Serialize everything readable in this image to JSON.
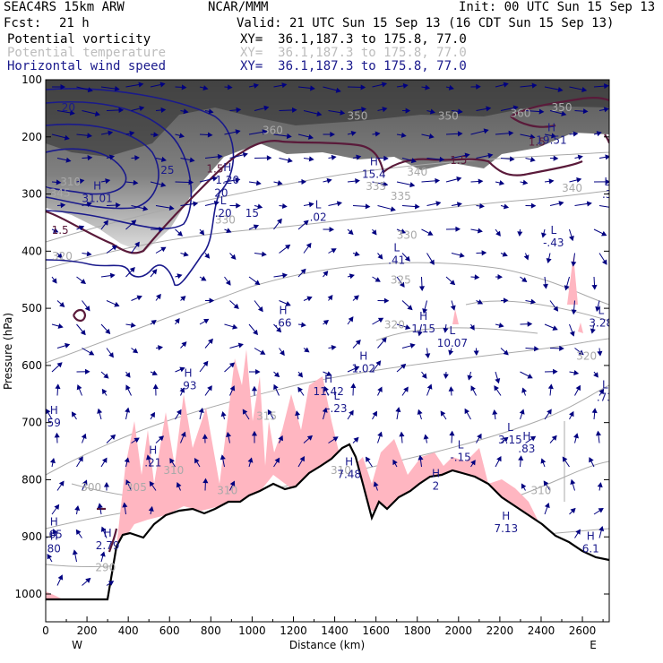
{
  "header": {
    "model": "SEAC4RS 15km ARW",
    "institution": "NCAR/MMM",
    "init": "Init: 00 UTC Sun 15 Sep 13",
    "fcst_label": "Fcst:",
    "fcst_value": "21 h",
    "valid": "Valid: 21 UTC Sun 15 Sep 13 (16 CDT Sun 15 Sep 13)",
    "fields": [
      {
        "name": "Potential vorticity",
        "color": "#000000",
        "xy": "XY=  36.1,187.3 to 175.8, 77.0"
      },
      {
        "name": "Potential temperature",
        "color": "#bdbdbd",
        "xy": "XY=  36.1,187.3 to 175.8, 77.0"
      },
      {
        "name": "Horizontal wind speed",
        "color": "#1a1a8c",
        "xy": "XY=  36.1,187.3 to 175.8, 77.0"
      }
    ]
  },
  "chart_data": {
    "type": "cross-section",
    "xlabel": "Distance (km)",
    "ylabel": "Pressure (hPa)",
    "xlim": [
      0,
      2730
    ],
    "ylim": [
      1000,
      100
    ],
    "x_ticks": [
      0,
      200,
      400,
      600,
      800,
      1000,
      1200,
      1400,
      1600,
      1800,
      2000,
      2200,
      2400,
      2600
    ],
    "y_ticks": [
      1000,
      900,
      800,
      700,
      600,
      500,
      400,
      300,
      200,
      100
    ],
    "endpoints": {
      "left": "W",
      "right": "E"
    },
    "colors": {
      "pv_contour": "#5a1a3a",
      "theta_contour": "#a9a9a9",
      "wind_contour": "#1a1a8c",
      "moisture_fill": "#ffb6c1",
      "wind_vectors": "#000080"
    },
    "theta_labels": [
      {
        "x": 120,
        "p": 285,
        "text": "310"
      },
      {
        "x": 70,
        "p": 305,
        "text": "345"
      },
      {
        "x": 1100,
        "p": 195,
        "text": "360"
      },
      {
        "x": 1510,
        "p": 170,
        "text": "350"
      },
      {
        "x": 1950,
        "p": 170,
        "text": "350"
      },
      {
        "x": 2300,
        "p": 165,
        "text": "360"
      },
      {
        "x": 2500,
        "p": 155,
        "text": "350"
      },
      {
        "x": 1800,
        "p": 268,
        "text": "340"
      },
      {
        "x": 2550,
        "p": 296,
        "text": "340"
      },
      {
        "x": 1600,
        "p": 293,
        "text": "335"
      },
      {
        "x": 1720,
        "p": 310,
        "text": "335"
      },
      {
        "x": 870,
        "p": 352,
        "text": "330"
      },
      {
        "x": 1750,
        "p": 378,
        "text": "330"
      },
      {
        "x": 80,
        "p": 415,
        "text": "320"
      },
      {
        "x": 1720,
        "p": 457,
        "text": "325"
      },
      {
        "x": 1690,
        "p": 535,
        "text": "320"
      },
      {
        "x": 2620,
        "p": 590,
        "text": "320"
      },
      {
        "x": 1070,
        "p": 695,
        "text": "315"
      },
      {
        "x": 880,
        "p": 825,
        "text": "310"
      },
      {
        "x": 620,
        "p": 790,
        "text": "310"
      },
      {
        "x": 440,
        "p": 820,
        "text": "305"
      },
      {
        "x": 220,
        "p": 820,
        "text": "300"
      },
      {
        "x": 1430,
        "p": 790,
        "text": "310"
      },
      {
        "x": 2400,
        "p": 825,
        "text": "310"
      },
      {
        "x": 290,
        "p": 960,
        "text": "290"
      }
    ],
    "pv_labels": [
      {
        "x": 70,
        "p": 370,
        "text": "1.5"
      },
      {
        "x": 820,
        "p": 262,
        "text": "1.5"
      },
      {
        "x": 2000,
        "p": 247,
        "text": "1.5"
      },
      {
        "x": 2380,
        "p": 215,
        "text": "1.5"
      }
    ],
    "wind_labels": [
      {
        "x": 110,
        "p": 155,
        "text": "20"
      },
      {
        "x": 590,
        "p": 265,
        "text": "25"
      },
      {
        "x": 850,
        "p": 305,
        "text": "20"
      },
      {
        "x": 1000,
        "p": 340,
        "text": "15"
      }
    ],
    "extrema": [
      {
        "x": 250,
        "p": 292,
        "type": "H",
        "value": "31.01"
      },
      {
        "x": 880,
        "p": 260,
        "type": "H",
        "value": "1.20"
      },
      {
        "x": 860,
        "p": 318,
        "type": "L",
        "value": ".20"
      },
      {
        "x": 1320,
        "p": 325,
        "type": "L",
        "value": ".02"
      },
      {
        "x": 1590,
        "p": 250,
        "type": "H",
        "value": "15.4"
      },
      {
        "x": 1700,
        "p": 400,
        "type": "L",
        "value": ".41"
      },
      {
        "x": 2450,
        "p": 190,
        "type": "H",
        "value": "19.51"
      },
      {
        "x": 2460,
        "p": 370,
        "type": "L",
        "value": "-.43"
      },
      {
        "x": 2720,
        "p": 285,
        "type": "L",
        "value": ".3"
      },
      {
        "x": 1150,
        "p": 510,
        "type": "H",
        "value": ".66"
      },
      {
        "x": 1830,
        "p": 520,
        "type": "H",
        "value": "1.15"
      },
      {
        "x": 1970,
        "p": 545,
        "type": "L",
        "value": "10.07"
      },
      {
        "x": 2690,
        "p": 510,
        "type": "L",
        "value": "3.28"
      },
      {
        "x": 1540,
        "p": 590,
        "type": "H",
        "value": "1.02"
      },
      {
        "x": 690,
        "p": 620,
        "type": "H",
        "value": ".93"
      },
      {
        "x": 1370,
        "p": 630,
        "type": "H",
        "value": "11.42"
      },
      {
        "x": 1410,
        "p": 660,
        "type": "L",
        "value": "-.23"
      },
      {
        "x": 2710,
        "p": 640,
        "type": "L",
        "value": ".73"
      },
      {
        "x": 40,
        "p": 685,
        "type": "H",
        "value": "59"
      },
      {
        "x": 2250,
        "p": 715,
        "type": "L",
        "value": "3.15"
      },
      {
        "x": 2330,
        "p": 730,
        "type": "H",
        "value": ".83"
      },
      {
        "x": 520,
        "p": 755,
        "type": "H",
        "value": ".21"
      },
      {
        "x": 2010,
        "p": 745,
        "type": "L",
        "value": "-.15"
      },
      {
        "x": 1470,
        "p": 775,
        "type": "H",
        "value": "7.48"
      },
      {
        "x": 1890,
        "p": 795,
        "type": "H",
        "value": "2"
      },
      {
        "x": 40,
        "p": 880,
        "type": "H",
        "value": ".65"
      },
      {
        "x": 40,
        "p": 905,
        "type": "H",
        "value": "80"
      },
      {
        "x": 300,
        "p": 900,
        "type": "H",
        "value": "2.79"
      },
      {
        "x": 2230,
        "p": 870,
        "type": "H",
        "value": "7.13"
      },
      {
        "x": 2640,
        "p": 905,
        "type": "H",
        "value": "6.1"
      }
    ]
  }
}
